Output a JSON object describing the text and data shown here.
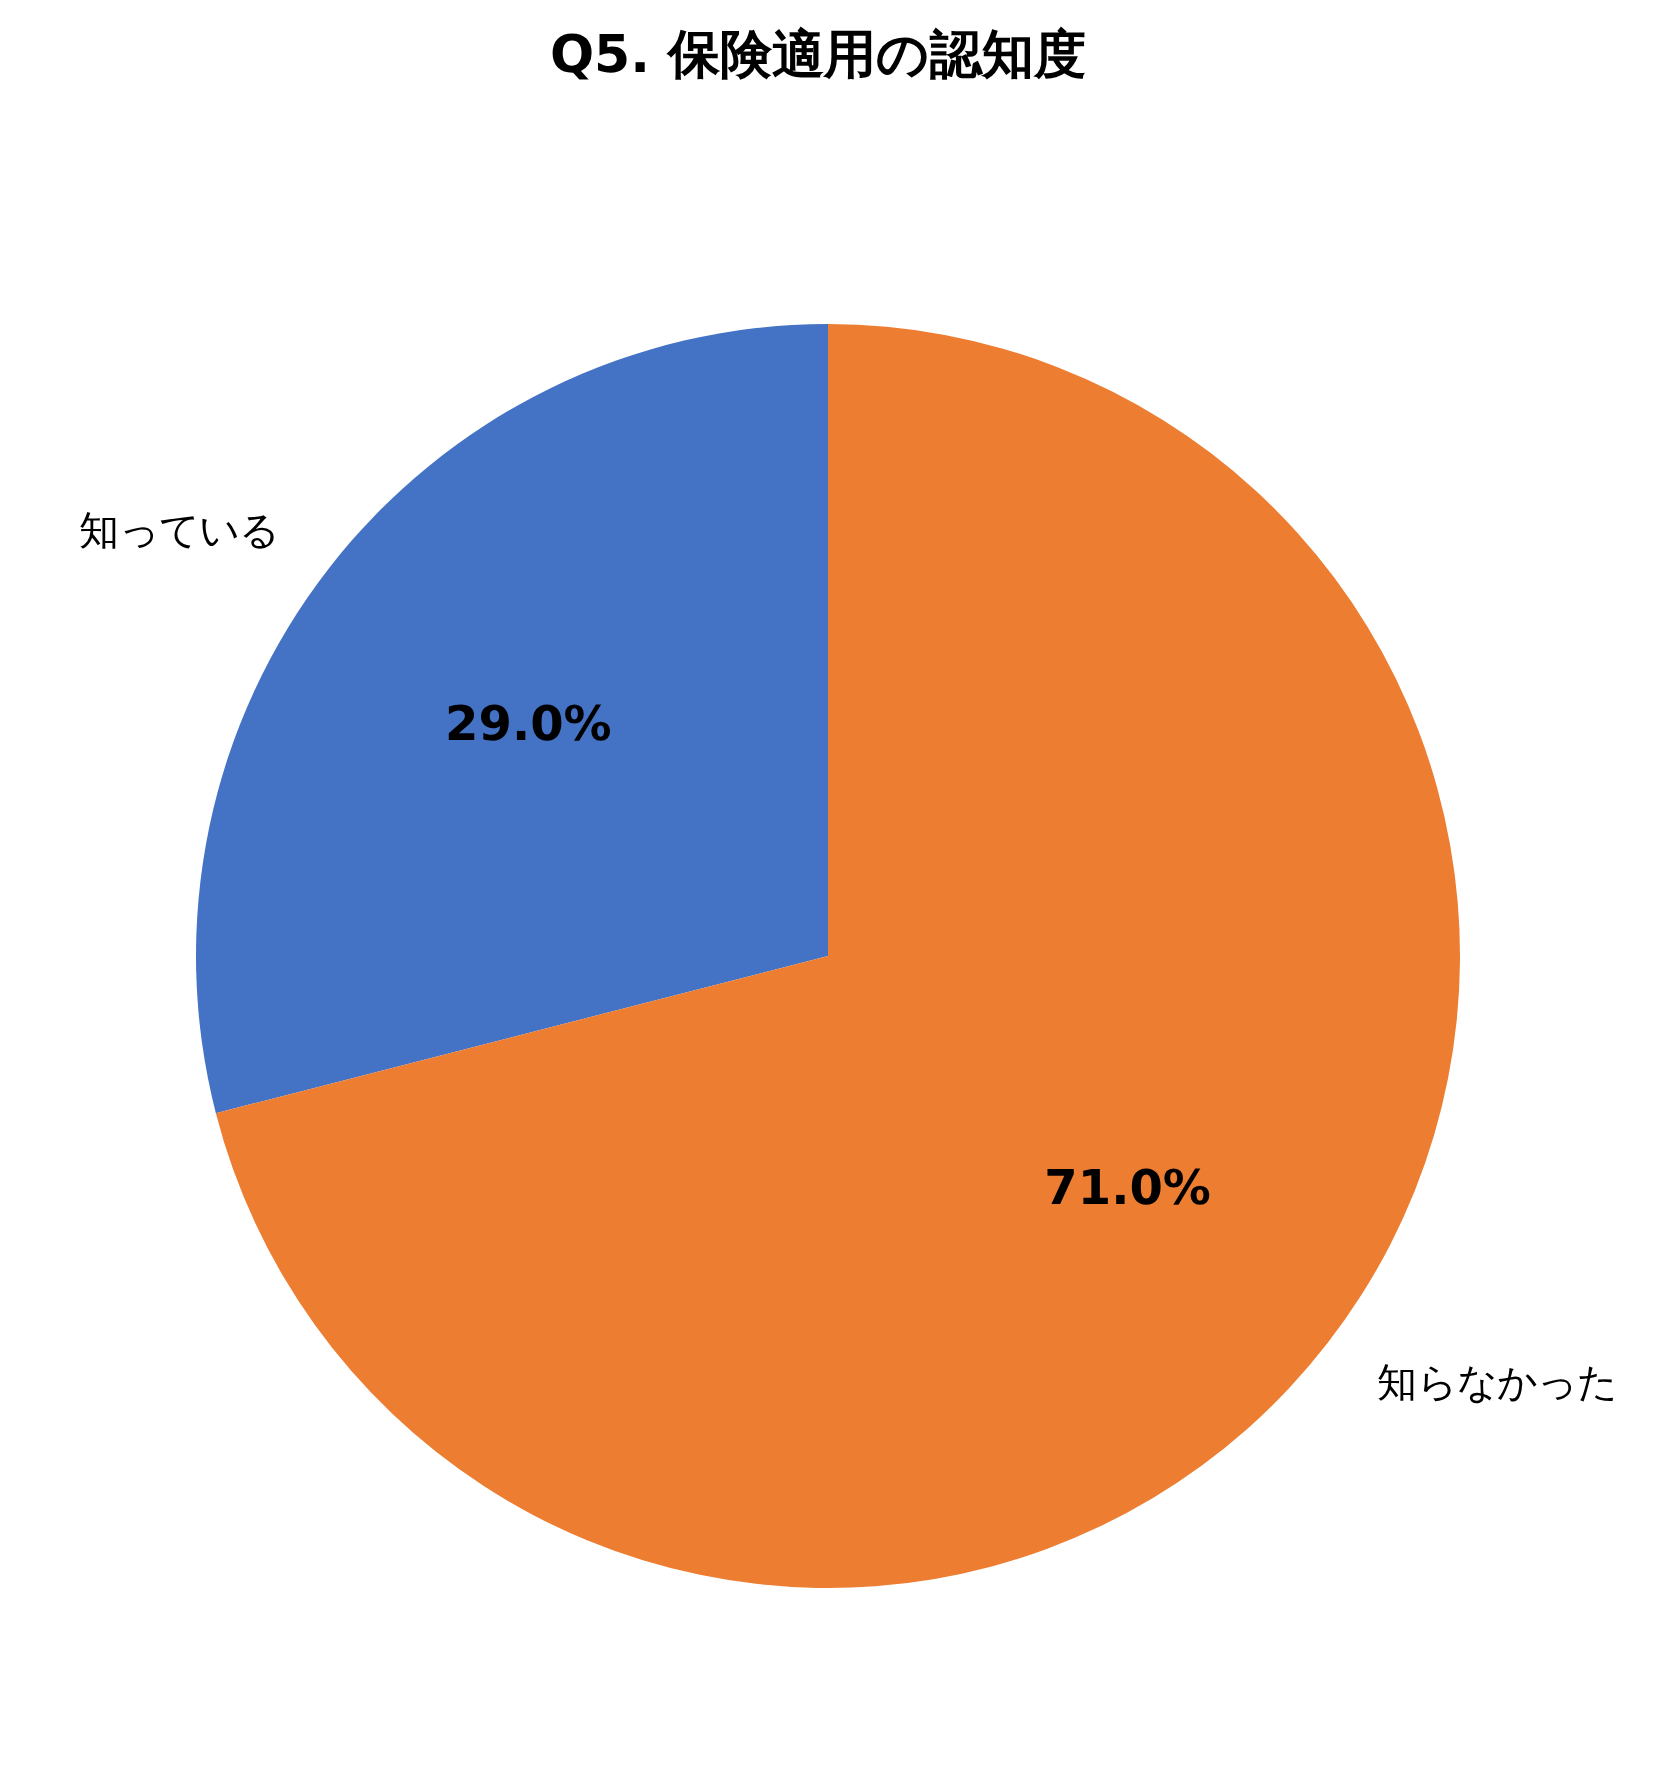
{
  "chart_data": {
    "type": "pie",
    "title": "Q5. 保険適用の認知度",
    "categories": [
      "知っている",
      "知らなかった"
    ],
    "values": [
      29.0,
      71.0
    ],
    "colors": [
      "#4472c4",
      "#ed7d31"
    ],
    "value_labels": [
      "29.0%",
      "71.0%"
    ]
  }
}
